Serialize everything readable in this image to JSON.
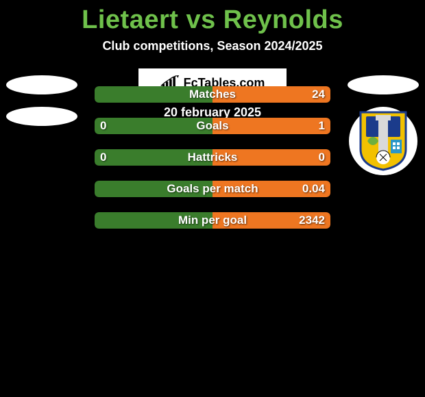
{
  "title_color": "#6fc14b",
  "title": "Lietaert vs Reynolds",
  "subtitle": "Club competitions, Season 2024/2025",
  "date_text": "20 february 2025",
  "colors": {
    "left_bar": "#3a7d2c",
    "right_bar": "#ee7621",
    "bar_border_radius": 6
  },
  "badges": {
    "left": {
      "show_ellipse_top": true,
      "show_ellipse_bottom": true,
      "show_crest": false
    },
    "right": {
      "show_ellipse_top": true,
      "show_ellipse_bottom": false,
      "show_crest": true
    }
  },
  "rows": [
    {
      "label": "Matches",
      "left_val": "",
      "right_val": "24",
      "left_width_pct": 50,
      "right_width_pct": 50
    },
    {
      "label": "Goals",
      "left_val": "0",
      "right_val": "1",
      "left_width_pct": 50,
      "right_width_pct": 50
    },
    {
      "label": "Hattricks",
      "left_val": "0",
      "right_val": "0",
      "left_width_pct": 50,
      "right_width_pct": 50
    },
    {
      "label": "Goals per match",
      "left_val": "",
      "right_val": "0.04",
      "left_width_pct": 50,
      "right_width_pct": 50
    },
    {
      "label": "Min per goal",
      "left_val": "",
      "right_val": "2342",
      "left_width_pct": 50,
      "right_width_pct": 50
    }
  ],
  "logo_text": "FcTables.com"
}
